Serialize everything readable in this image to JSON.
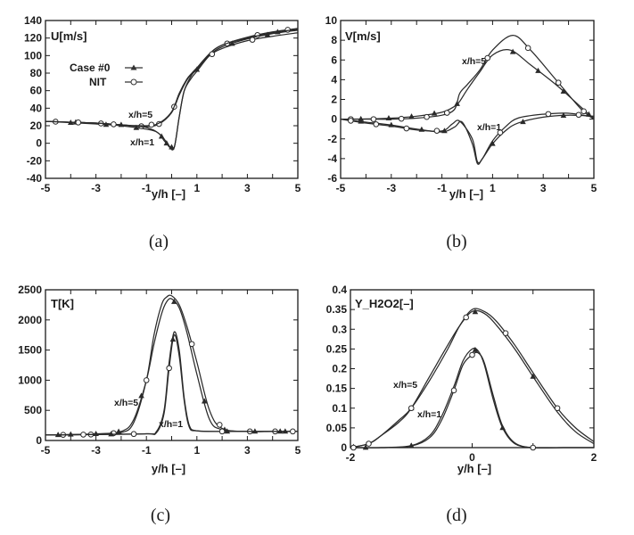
{
  "chart_data": [
    {
      "type": "line",
      "panel": "(a)",
      "ylabel": "U[m/s]",
      "xlabel": "y/h [–]",
      "xlim": [
        -5,
        5
      ],
      "ylim": [
        -40,
        140
      ],
      "xticks": [
        "-5",
        "-3",
        "-1",
        "1",
        "3",
        "5"
      ],
      "yticks": [
        "-40",
        "-20",
        "0",
        "20",
        "40",
        "60",
        "80",
        "100",
        "120",
        "140"
      ],
      "legend": {
        "placement": "upper-left",
        "entries": [
          "Case #0",
          "NIT"
        ]
      },
      "annotations": [
        "x/h=5",
        "x/h=1"
      ],
      "series": [
        {
          "name": "Case #0",
          "x": [
            -5,
            -4,
            -3,
            -2,
            -1,
            -0.6,
            -0.3,
            -0.1,
            0.1,
            0.3,
            0.5,
            0.8,
            1,
            1.5,
            2,
            3,
            4,
            5
          ],
          "values": [
            25,
            23.5,
            22,
            20,
            16,
            13,
            5,
            -4,
            -5,
            30,
            60,
            75,
            82,
            100,
            110,
            119,
            125,
            129
          ]
        },
        {
          "name": "NIT",
          "x": [
            -5,
            -4,
            -3,
            -2,
            -1,
            -0.5,
            0,
            0.3,
            0.6,
            0.8,
            1,
            1.5,
            2,
            3,
            4,
            5
          ],
          "values": [
            25,
            24,
            23,
            21,
            19,
            22,
            35,
            55,
            72,
            79,
            86,
            102,
            112,
            121,
            127,
            131
          ]
        },
        {
          "name": "NIT",
          "x": [
            -5,
            -4,
            -3,
            -2,
            -1,
            -0.5,
            -0.3,
            -0.1,
            0.1,
            0.3,
            0.5,
            0.8,
            1,
            1.5,
            2,
            3,
            4,
            5
          ],
          "values": [
            25,
            24,
            23,
            21,
            18,
            11,
            3,
            -3,
            -5,
            30,
            60,
            78,
            84,
            102,
            112,
            120,
            126,
            130
          ]
        },
        {
          "name": "Case #0",
          "x": [
            -5,
            -4,
            -3,
            -2,
            -1,
            -0.5,
            0,
            0.3,
            0.6,
            0.8,
            1,
            1.5,
            2,
            3,
            4,
            5
          ],
          "values": [
            25,
            24,
            23,
            21,
            20,
            23,
            36,
            57,
            73,
            80,
            86,
            100,
            108,
            117,
            122,
            126
          ]
        }
      ],
      "markers_x": {
        "s0": [
          -4,
          -2.6,
          -1.4,
          -0.4,
          0,
          2.4,
          3.8
        ],
        "s1": [
          -4.6,
          -2.8,
          -1.2,
          -0.5,
          0.1,
          2.2,
          3.4,
          4.6
        ],
        "s2": [
          -3.8,
          -2,
          -0.2,
          1,
          4.2
        ],
        "s3": [
          -3.7,
          -2.3,
          -0.8,
          1.6,
          3.2
        ]
      }
    },
    {
      "type": "line",
      "panel": "(b)",
      "ylabel": "V[m/s]",
      "xlabel": "y/h [–]",
      "xlim": [
        -5,
        5
      ],
      "ylim": [
        -6,
        10
      ],
      "xticks": [
        "-5",
        "-3",
        "-1",
        "1",
        "3",
        "5"
      ],
      "yticks": [
        "-6",
        "-4",
        "-2",
        "0",
        "2",
        "4",
        "6",
        "8",
        "10"
      ],
      "annotations": [
        "x/h=5",
        "x/h=1"
      ],
      "series": [
        {
          "name": "Case #0",
          "x": [
            -5,
            -4,
            -3,
            -2,
            -1,
            -0.5,
            -0.3,
            0,
            0.5,
            1,
            1.7,
            2.5,
            3.5,
            4.5,
            5
          ],
          "values": [
            0,
            0.02,
            0.1,
            0.3,
            0.7,
            1.3,
            1.8,
            3.0,
            4.8,
            6.5,
            7.0,
            5.5,
            3.5,
            1.2,
            0
          ]
        },
        {
          "name": "NIT",
          "x": [
            -5,
            -4,
            -3,
            -2,
            -1,
            -0.5,
            -0.3,
            0,
            0.5,
            1,
            1.8,
            2.5,
            3.5,
            4.5,
            5
          ],
          "values": [
            0,
            0,
            0,
            0.1,
            0.4,
            1.0,
            2.6,
            3.5,
            5.0,
            7.0,
            8.5,
            7.0,
            4.0,
            1.0,
            0
          ]
        },
        {
          "name": "Case #0",
          "x": [
            -5,
            -4,
            -3,
            -2,
            -1,
            -0.5,
            -0.2,
            0.2,
            0.4,
            0.6,
            1,
            1.5,
            2,
            3,
            4,
            5
          ],
          "values": [
            0,
            -0.3,
            -0.6,
            -1.0,
            -1.3,
            -0.8,
            -0.3,
            -2.5,
            -4.5,
            -4.0,
            -2.5,
            -1.2,
            -0.4,
            0.2,
            0.4,
            0.3
          ]
        },
        {
          "name": "NIT",
          "x": [
            -5,
            -4,
            -3,
            -2,
            -1,
            -0.6,
            -0.3,
            0.2,
            0.4,
            0.6,
            1,
            1.5,
            2,
            3,
            4,
            5
          ],
          "values": [
            0,
            -0.4,
            -0.7,
            -1.1,
            -1.2,
            -0.5,
            -0.2,
            -2.0,
            -4.3,
            -4.0,
            -2.2,
            -0.8,
            0.1,
            0.5,
            0.6,
            0.2
          ]
        }
      ],
      "markers_x": {
        "s0": [
          -4.2,
          -3.1,
          -2.2,
          -1.3,
          -0.4,
          1.8,
          2.8,
          3.8,
          4.8
        ],
        "s1": [
          -4.6,
          -3.7,
          -2.6,
          -1.6,
          -0.8,
          0.8,
          2.4,
          3.6,
          4.6
        ],
        "s2": [
          -4.2,
          -3,
          -1.8,
          -0.9,
          1,
          2.2,
          3.8
        ],
        "s3": [
          -4.6,
          -3.6,
          -2.4,
          -1.2,
          1.3,
          3.2,
          4.4
        ]
      }
    },
    {
      "type": "line",
      "panel": "(c)",
      "ylabel": "T[K]",
      "xlabel": "y/h [–]",
      "xlim": [
        -5,
        5
      ],
      "ylim": [
        0,
        2500
      ],
      "xticks": [
        "-5",
        "-3",
        "-1",
        "1",
        "3",
        "5"
      ],
      "yticks": [
        "0",
        "500",
        "1000",
        "1500",
        "2000",
        "2500"
      ],
      "annotations": [
        "x/h=5",
        "x/h=1"
      ],
      "series": [
        {
          "name": "Case #0",
          "x": [
            -5,
            -4,
            -3,
            -2,
            -1.5,
            -1,
            -0.7,
            -0.4,
            -0.2,
            0,
            0.3,
            0.6,
            1,
            1.5,
            2,
            3,
            4,
            5
          ],
          "values": [
            90,
            100,
            110,
            150,
            350,
            1000,
            1600,
            2100,
            2300,
            2350,
            2200,
            1800,
            1100,
            350,
            180,
            150,
            150,
            150
          ]
        },
        {
          "name": "NIT",
          "x": [
            -5,
            -4,
            -3,
            -2,
            -1.5,
            -1,
            -0.7,
            -0.4,
            -0.2,
            0,
            0.3,
            0.6,
            1,
            1.5,
            2,
            3,
            4,
            5
          ],
          "values": [
            90,
            95,
            100,
            130,
            300,
            1000,
            1750,
            2250,
            2380,
            2400,
            2250,
            1900,
            1300,
            500,
            200,
            150,
            150,
            150
          ]
        },
        {
          "name": "Case #0",
          "x": [
            -5,
            -3,
            -1,
            -0.6,
            -0.3,
            -0.1,
            0.1,
            0.3,
            0.5,
            0.7,
            1,
            2,
            3,
            5
          ],
          "values": [
            90,
            100,
            110,
            150,
            500,
            1300,
            1800,
            1500,
            700,
            250,
            160,
            150,
            150,
            150
          ]
        },
        {
          "name": "NIT",
          "x": [
            -5,
            -3,
            -1,
            -0.6,
            -0.3,
            -0.1,
            0.1,
            0.3,
            0.5,
            0.7,
            1,
            2,
            3,
            5
          ],
          "values": [
            90,
            100,
            110,
            130,
            450,
            1200,
            1750,
            1400,
            650,
            220,
            160,
            150,
            150,
            150
          ]
        }
      ],
      "markers_x": {
        "s0": [
          -4,
          -3,
          -2.1,
          -1.2,
          0.1,
          1.3,
          2.1,
          3.3,
          4.3
        ],
        "s1": [
          -4.3,
          -3.2,
          -2.3,
          -1.0,
          0.8,
          1.9,
          3.1,
          4.1
        ],
        "s2": [
          -4.5,
          -2.4,
          0.05,
          2.2,
          4.5
        ],
        "s3": [
          -3.5,
          -1.5,
          -0.1,
          2.0,
          4.8
        ]
      }
    },
    {
      "type": "line",
      "panel": "(d)",
      "ylabel": "Y_H2O2[–]",
      "xlabel": "y/h [–]",
      "xlim": [
        -2,
        2
      ],
      "ylim": [
        0,
        0.4
      ],
      "xticks": [
        "-2",
        "0",
        "2"
      ],
      "yticks": [
        "0",
        "0.05",
        "0.1",
        "0.15",
        "0.2",
        "0.25",
        "0.3",
        "0.35",
        "0.4"
      ],
      "annotations": [
        "x/h=5",
        "x/h=1"
      ],
      "series": [
        {
          "name": "Case #0",
          "x": [
            -2,
            -1.7,
            -1.5,
            -1.2,
            -1.0,
            -0.7,
            -0.4,
            -0.2,
            0,
            0.2,
            0.4,
            0.7,
            1.0,
            1.4,
            1.7,
            2
          ],
          "values": [
            0,
            0.01,
            0.03,
            0.065,
            0.1,
            0.18,
            0.26,
            0.31,
            0.345,
            0.34,
            0.31,
            0.25,
            0.18,
            0.09,
            0.04,
            0.01
          ]
        },
        {
          "name": "NIT",
          "x": [
            -2,
            -1.7,
            -1.5,
            -1.2,
            -1.0,
            -0.7,
            -0.4,
            -0.2,
            0,
            0.2,
            0.4,
            0.7,
            1.0,
            1.4,
            1.7,
            2
          ],
          "values": [
            0,
            0.01,
            0.03,
            0.07,
            0.1,
            0.17,
            0.25,
            0.31,
            0.35,
            0.345,
            0.32,
            0.26,
            0.19,
            0.1,
            0.05,
            0.015
          ]
        },
        {
          "name": "Case #0",
          "x": [
            -2,
            -1.5,
            -1.0,
            -0.7,
            -0.5,
            -0.3,
            -0.15,
            0,
            0.1,
            0.2,
            0.35,
            0.5,
            0.7,
            1.0,
            1.5,
            2
          ],
          "values": [
            0,
            0,
            0.005,
            0.03,
            0.08,
            0.155,
            0.22,
            0.25,
            0.245,
            0.21,
            0.12,
            0.05,
            0.01,
            0,
            0,
            0
          ]
        },
        {
          "name": "NIT",
          "x": [
            -2,
            -1.5,
            -1.0,
            -0.7,
            -0.5,
            -0.3,
            -0.15,
            0,
            0.1,
            0.2,
            0.35,
            0.5,
            0.7,
            1.0,
            1.5,
            2
          ],
          "values": [
            0,
            0,
            0.004,
            0.025,
            0.07,
            0.145,
            0.21,
            0.235,
            0.24,
            0.215,
            0.13,
            0.055,
            0.012,
            0,
            0,
            0
          ]
        }
      ],
      "markers_x": {
        "s0": [
          -1.95,
          -1.0,
          0.05,
          1.0
        ],
        "s1": [
          -1.7,
          -1.0,
          -0.1,
          0.55,
          1.4
        ],
        "s2": [
          -1.75,
          -1.0,
          0.05,
          0.5
        ],
        "s3": [
          -1.95,
          -0.3,
          0,
          1.0
        ]
      }
    }
  ]
}
